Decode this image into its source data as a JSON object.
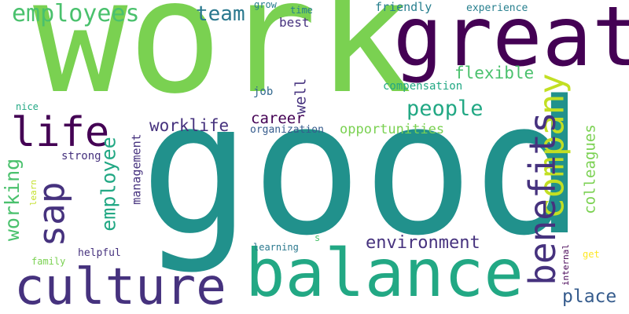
{
  "words": {
    "good": "good",
    "work": "work",
    "great": "great",
    "balance": "balance",
    "culture": "culture",
    "company": "company",
    "benefits": "benefits",
    "life": "life",
    "sap": "sap",
    "employees": "employees",
    "team": "team",
    "people": "people",
    "working": "working",
    "employee": "employee",
    "place": "place",
    "environment": "environment",
    "flexible": "flexible",
    "worklife": "worklife",
    "career": "career",
    "colleagues": "colleagues",
    "well": "well",
    "opportunities": "opportunities",
    "management": "management",
    "best": "best",
    "strong": "strong",
    "friendly": "friendly",
    "experience": "experience",
    "compensation": "compensation",
    "job": "job",
    "organization": "organization",
    "grow": "grow",
    "time": "time",
    "nice": "nice",
    "learn": "learn",
    "family": "family",
    "helpful": "helpful",
    "learning": "learning",
    "s": "s",
    "internal": "internal",
    "get": "get"
  },
  "colors": {
    "purple_dark": "#440154",
    "indigo": "#46327e",
    "blue": "#365c8d",
    "teal_blue": "#277f8e",
    "teal": "#1fa187",
    "green": "#4ac16d",
    "lime": "#a0da39",
    "yellow": "#fde725"
  }
}
